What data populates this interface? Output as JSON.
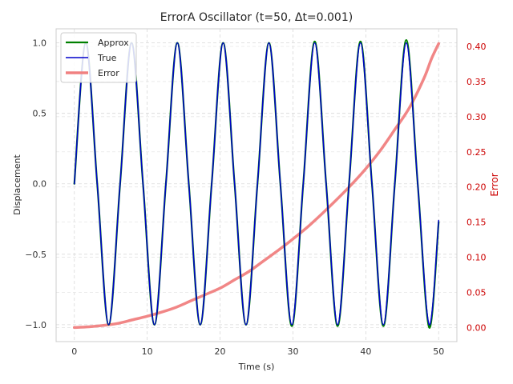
{
  "chart_data": {
    "type": "line",
    "title": "ErrorA Oscillator (t=50, Δt=0.001)",
    "xlabel": "Time (s)",
    "ylabel": "Displacement",
    "y2label": "Error",
    "xlim": [
      -2.5,
      52.5
    ],
    "ylim": [
      -1.12,
      1.1
    ],
    "y2lim": [
      -0.02,
      0.425
    ],
    "x_ticks": [
      0,
      10,
      20,
      30,
      40,
      50
    ],
    "y_ticks": [
      -1.0,
      -0.5,
      0.0,
      0.5,
      1.0
    ],
    "y2_ticks": [
      0.0,
      0.05,
      0.1,
      0.15,
      0.2,
      0.25,
      0.3,
      0.35,
      0.4
    ],
    "x_tick_labels": [
      "0",
      "10",
      "20",
      "30",
      "40",
      "50"
    ],
    "y_tick_labels": [
      "−1.0",
      "−0.5",
      "0.0",
      "0.5",
      "1.0"
    ],
    "y2_tick_labels": [
      "0.00",
      "0.05",
      "0.10",
      "0.15",
      "0.20",
      "0.25",
      "0.30",
      "0.35",
      "0.40"
    ],
    "grid": true,
    "legend_position": "top-left",
    "series": [
      {
        "name": "Approx",
        "axis": "left",
        "color": "#008000",
        "x": [
          0,
          1.571,
          3.142,
          4.712,
          6.283,
          7.854,
          9.425,
          10.996,
          12.566,
          14.137,
          15.708,
          17.279,
          18.85,
          20.42,
          21.991,
          23.562,
          25.133,
          26.704,
          28.274,
          29.845,
          31.416,
          32.987,
          34.558,
          36.128,
          37.699,
          39.27,
          40.841,
          42.412,
          43.982,
          45.553,
          47.124,
          48.695,
          50
        ],
        "values": [
          0,
          1.0,
          0,
          -1.0,
          0,
          1.0,
          0,
          -1.0,
          0,
          1.0,
          0,
          -1.0,
          0,
          1.0,
          0,
          -1.0,
          0,
          1.0,
          0,
          -1.01,
          0,
          1.01,
          0,
          -1.01,
          0,
          1.01,
          0,
          -1.01,
          0,
          1.02,
          0,
          -1.02,
          -0.27
        ]
      },
      {
        "name": "True",
        "axis": "left",
        "color": "#0000cc",
        "x": [
          0,
          1.571,
          3.142,
          4.712,
          6.283,
          7.854,
          9.425,
          10.996,
          12.566,
          14.137,
          15.708,
          17.279,
          18.85,
          20.42,
          21.991,
          23.562,
          25.133,
          26.704,
          28.274,
          29.845,
          31.416,
          32.987,
          34.558,
          36.128,
          37.699,
          39.27,
          40.841,
          42.412,
          43.982,
          45.553,
          47.124,
          48.695,
          50
        ],
        "values": [
          0,
          1.0,
          0,
          -1.0,
          0,
          1.0,
          0,
          -1.0,
          0,
          1.0,
          0,
          -1.0,
          0,
          1.0,
          0,
          -1.0,
          0,
          1.0,
          0,
          -1.0,
          0,
          1.0,
          0,
          -1.0,
          0,
          1.0,
          0,
          -1.0,
          0,
          1.0,
          0,
          -1.0,
          -0.26
        ]
      },
      {
        "name": "Error",
        "axis": "right",
        "color": "#f08080",
        "x": [
          0,
          2,
          4,
          6,
          8,
          10,
          12,
          14,
          16,
          18,
          20,
          22,
          24,
          26,
          28,
          30,
          32,
          34,
          36,
          38,
          40,
          42,
          44,
          46,
          48,
          49,
          50
        ],
        "values": [
          0.0,
          0.001,
          0.003,
          0.006,
          0.011,
          0.016,
          0.022,
          0.029,
          0.038,
          0.047,
          0.056,
          0.068,
          0.08,
          0.095,
          0.11,
          0.126,
          0.143,
          0.162,
          0.182,
          0.203,
          0.226,
          0.252,
          0.282,
          0.313,
          0.355,
          0.382,
          0.404
        ]
      }
    ]
  }
}
